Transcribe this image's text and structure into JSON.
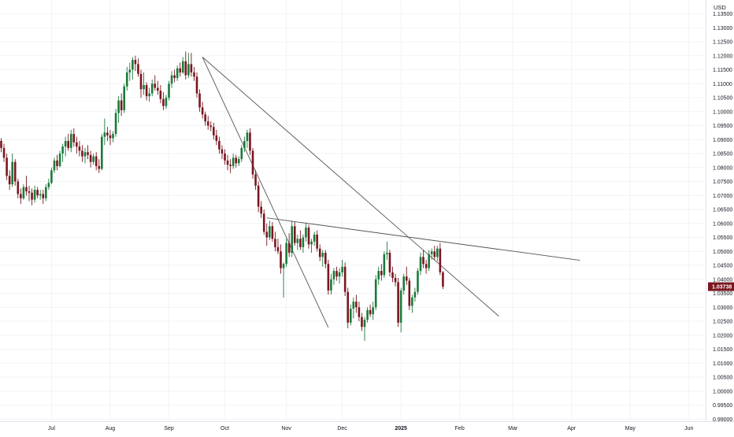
{
  "chart_data": {
    "type": "candlestick",
    "currency": "USD",
    "y_ticks": [
      "1.13500",
      "1.13000",
      "1.12500",
      "1.12000",
      "1.11500",
      "1.11000",
      "1.10500",
      "1.10000",
      "1.09500",
      "1.09000",
      "1.08500",
      "1.08000",
      "1.07500",
      "1.07000",
      "1.06500",
      "1.06000",
      "1.05500",
      "1.05000",
      "1.04500",
      "1.04000",
      "1.03500",
      "1.03000",
      "1.02500",
      "1.02000",
      "1.01500",
      "1.01000",
      "1.00500",
      "1.00000",
      "0.99500",
      "0.99000"
    ],
    "ylim": [
      0.989,
      1.1375
    ],
    "x_ticks": [
      {
        "label": "Jul",
        "bar": 18
      },
      {
        "label": "Aug",
        "bar": 39
      },
      {
        "label": "Sep",
        "bar": 60
      },
      {
        "label": "Oct",
        "bar": 80
      },
      {
        "label": "Nov",
        "bar": 102
      },
      {
        "label": "Dec",
        "bar": 122
      },
      {
        "label": "2025",
        "bar": 143
      },
      {
        "label": "Feb",
        "bar": 164
      },
      {
        "label": "Mar",
        "bar": 183
      },
      {
        "label": "Apr",
        "bar": 204
      },
      {
        "label": "May",
        "bar": 225
      },
      {
        "label": "Jun",
        "bar": 246
      }
    ],
    "bold_x_tick": "2025",
    "last_price": "1.03738",
    "colors": {
      "up": "#1b7a3a",
      "down": "#7a1620",
      "price_label_bg": "#7a1620",
      "trendline": "#555555",
      "grid": "#f0f3f7",
      "axis_text": "#131722"
    },
    "candles": [
      [
        1.0895,
        1.0905,
        1.0855,
        1.087
      ],
      [
        1.087,
        1.0885,
        1.082,
        1.0835
      ],
      [
        1.0835,
        1.085,
        1.0755,
        1.077
      ],
      [
        1.077,
        1.079,
        1.072,
        1.074
      ],
      [
        1.074,
        1.085,
        1.073,
        1.082
      ],
      [
        1.082,
        1.083,
        1.0735,
        1.075
      ],
      [
        1.075,
        1.076,
        1.069,
        1.0705
      ],
      [
        1.0705,
        1.0725,
        1.067,
        1.069
      ],
      [
        1.069,
        1.074,
        1.0685,
        1.073
      ],
      [
        1.073,
        1.077,
        1.07,
        1.0715
      ],
      [
        1.0715,
        1.0735,
        1.068,
        1.071
      ],
      [
        1.071,
        1.0725,
        1.0665,
        1.0685
      ],
      [
        1.0685,
        1.0735,
        1.0675,
        1.072
      ],
      [
        1.072,
        1.073,
        1.069,
        1.07
      ],
      [
        1.07,
        1.072,
        1.0685,
        1.0705
      ],
      [
        1.0705,
        1.072,
        1.067,
        1.069
      ],
      [
        1.069,
        1.074,
        1.068,
        1.073
      ],
      [
        1.073,
        1.076,
        1.072,
        1.0745
      ],
      [
        1.0745,
        1.08,
        1.074,
        1.079
      ],
      [
        1.079,
        1.0835,
        1.078,
        1.0825
      ],
      [
        1.0825,
        1.0845,
        1.079,
        1.0805
      ],
      [
        1.0805,
        1.086,
        1.08,
        1.085
      ],
      [
        1.085,
        1.0885,
        1.082,
        1.0875
      ],
      [
        1.0875,
        1.091,
        1.084,
        1.0895
      ],
      [
        1.0895,
        1.092,
        1.086,
        1.087
      ],
      [
        1.087,
        1.0935,
        1.0855,
        1.092
      ],
      [
        1.092,
        1.094,
        1.0875,
        1.089
      ],
      [
        1.089,
        1.091,
        1.085,
        1.0875
      ],
      [
        1.0875,
        1.0895,
        1.084,
        1.086
      ],
      [
        1.086,
        1.088,
        1.082,
        1.084
      ],
      [
        1.084,
        1.087,
        1.0815,
        1.0855
      ],
      [
        1.0855,
        1.088,
        1.083,
        1.0845
      ],
      [
        1.0845,
        1.086,
        1.08,
        1.082
      ],
      [
        1.082,
        1.085,
        1.081,
        1.084
      ],
      [
        1.084,
        1.0855,
        1.079,
        1.0805
      ],
      [
        1.0805,
        1.083,
        1.078,
        1.0795
      ],
      [
        1.0795,
        1.092,
        1.079,
        1.091
      ],
      [
        1.091,
        1.0975,
        1.088,
        1.0925
      ],
      [
        1.0925,
        1.0945,
        1.0895,
        1.0915
      ],
      [
        1.0915,
        1.0935,
        1.088,
        1.0905
      ],
      [
        1.0905,
        1.093,
        1.089,
        1.092
      ],
      [
        1.092,
        1.101,
        1.091,
        1.0995
      ],
      [
        1.0995,
        1.1055,
        1.096,
        1.104
      ],
      [
        1.104,
        1.1065,
        1.0985,
        1.1005
      ],
      [
        1.1005,
        1.11,
        1.0995,
        1.109
      ],
      [
        1.109,
        1.116,
        1.1075,
        1.114
      ],
      [
        1.114,
        1.1175,
        1.111,
        1.115
      ],
      [
        1.115,
        1.1195,
        1.1115,
        1.1185
      ],
      [
        1.1185,
        1.12,
        1.1145,
        1.117
      ],
      [
        1.117,
        1.119,
        1.1125,
        1.1135
      ],
      [
        1.1135,
        1.115,
        1.105,
        1.108
      ],
      [
        1.108,
        1.114,
        1.106,
        1.1095
      ],
      [
        1.1095,
        1.1105,
        1.104,
        1.1055
      ],
      [
        1.1055,
        1.1085,
        1.1035,
        1.1065
      ],
      [
        1.1065,
        1.1115,
        1.1055,
        1.11
      ],
      [
        1.11,
        1.113,
        1.1075,
        1.1085
      ],
      [
        1.1085,
        1.111,
        1.106,
        1.1075
      ],
      [
        1.1075,
        1.1095,
        1.103,
        1.1045
      ],
      [
        1.1045,
        1.107,
        1.1005,
        1.102
      ],
      [
        1.102,
        1.106,
        1.101,
        1.105
      ],
      [
        1.105,
        1.111,
        1.104,
        1.11
      ],
      [
        1.11,
        1.1145,
        1.1085,
        1.113
      ],
      [
        1.113,
        1.115,
        1.1105,
        1.112
      ],
      [
        1.112,
        1.1165,
        1.111,
        1.1155
      ],
      [
        1.1155,
        1.1175,
        1.1125,
        1.114
      ],
      [
        1.114,
        1.1195,
        1.1135,
        1.118
      ],
      [
        1.118,
        1.1215,
        1.1115,
        1.113
      ],
      [
        1.113,
        1.121,
        1.112,
        1.117
      ],
      [
        1.117,
        1.121,
        1.1125,
        1.114
      ],
      [
        1.114,
        1.116,
        1.111,
        1.1125
      ],
      [
        1.1125,
        1.114,
        1.105,
        1.1065
      ],
      [
        1.1065,
        1.108,
        1.1,
        1.1015
      ],
      [
        1.1015,
        1.1035,
        1.0975,
        1.099
      ],
      [
        1.099,
        1.1,
        1.095,
        1.0965
      ],
      [
        1.0965,
        1.0985,
        1.0935,
        1.095
      ],
      [
        1.095,
        1.0965,
        1.093,
        1.0945
      ],
      [
        1.0945,
        1.096,
        1.09,
        1.0915
      ],
      [
        1.0915,
        1.0935,
        1.088,
        1.0895
      ],
      [
        1.0895,
        1.091,
        1.085,
        1.0865
      ],
      [
        1.0865,
        1.088,
        1.083,
        1.085
      ],
      [
        1.085,
        1.0865,
        1.081,
        1.0825
      ],
      [
        1.0825,
        1.0845,
        1.079,
        1.081
      ],
      [
        1.081,
        1.083,
        1.078,
        1.0805
      ],
      [
        1.0805,
        1.085,
        1.0795,
        1.0835
      ],
      [
        1.0835,
        1.0845,
        1.08,
        1.0815
      ],
      [
        1.0815,
        1.084,
        1.0805,
        1.083
      ],
      [
        1.083,
        1.088,
        1.082,
        1.087
      ],
      [
        1.087,
        1.091,
        1.0855,
        1.0895
      ],
      [
        1.0895,
        1.0935,
        1.087,
        1.0925
      ],
      [
        1.0925,
        1.094,
        1.0845,
        1.086
      ],
      [
        1.086,
        1.087,
        1.076,
        1.0775
      ],
      [
        1.0775,
        1.079,
        1.072,
        1.0735
      ],
      [
        1.0735,
        1.075,
        1.064,
        1.066
      ],
      [
        1.066,
        1.068,
        1.062,
        1.0635
      ],
      [
        1.0635,
        1.065,
        1.056,
        1.057
      ],
      [
        1.057,
        1.06,
        1.052,
        1.055
      ],
      [
        1.055,
        1.061,
        1.054,
        1.059
      ],
      [
        1.059,
        1.0605,
        1.0535,
        1.0545
      ],
      [
        1.0545,
        1.057,
        1.05,
        1.0515
      ],
      [
        1.0515,
        1.0545,
        1.049,
        1.05
      ],
      [
        1.05,
        1.0525,
        1.042,
        1.044
      ],
      [
        1.044,
        1.046,
        1.0335,
        1.0455
      ],
      [
        1.0455,
        1.0545,
        1.0445,
        1.053
      ],
      [
        1.053,
        1.0565,
        1.048,
        1.0495
      ],
      [
        1.0495,
        1.061,
        1.048,
        1.059
      ],
      [
        1.059,
        1.0605,
        1.052,
        1.053
      ],
      [
        1.053,
        1.056,
        1.0505,
        1.0545
      ],
      [
        1.0545,
        1.0575,
        1.0505,
        1.0515
      ],
      [
        1.0515,
        1.056,
        1.0495,
        1.055
      ],
      [
        1.055,
        1.06,
        1.0535,
        1.0585
      ],
      [
        1.0585,
        1.0595,
        1.051,
        1.0525
      ],
      [
        1.0525,
        1.0545,
        1.0495,
        1.0535
      ],
      [
        1.0535,
        1.057,
        1.052,
        1.056
      ],
      [
        1.056,
        1.0575,
        1.05,
        1.051
      ],
      [
        1.051,
        1.0525,
        1.0465,
        1.048
      ],
      [
        1.048,
        1.0505,
        1.0445,
        1.0495
      ],
      [
        1.0495,
        1.0505,
        1.044,
        1.0455
      ],
      [
        1.0455,
        1.047,
        1.0345,
        1.036
      ],
      [
        1.036,
        1.042,
        1.0345,
        1.04
      ],
      [
        1.04,
        1.044,
        1.038,
        1.043
      ],
      [
        1.043,
        1.0445,
        1.0395,
        1.041
      ],
      [
        1.041,
        1.044,
        1.0385,
        1.0425
      ],
      [
        1.0425,
        1.047,
        1.041,
        1.0445
      ],
      [
        1.0445,
        1.046,
        1.034,
        1.0355
      ],
      [
        1.0355,
        1.037,
        1.0225,
        1.0245
      ],
      [
        1.0245,
        1.031,
        1.0235,
        1.0295
      ],
      [
        1.0295,
        1.0335,
        1.026,
        1.032
      ],
      [
        1.032,
        1.0345,
        1.028,
        1.03
      ],
      [
        1.03,
        1.032,
        1.025,
        1.0265
      ],
      [
        1.0265,
        1.028,
        1.0215,
        1.023
      ],
      [
        1.023,
        1.0265,
        1.018,
        1.0255
      ],
      [
        1.0255,
        1.03,
        1.0245,
        1.029
      ],
      [
        1.029,
        1.031,
        1.0265,
        1.0275
      ],
      [
        1.0275,
        1.032,
        1.0255,
        1.03
      ],
      [
        1.03,
        1.0415,
        1.029,
        1.04
      ],
      [
        1.04,
        1.0445,
        1.038,
        1.043
      ],
      [
        1.043,
        1.0455,
        1.0395,
        1.0415
      ],
      [
        1.0415,
        1.05,
        1.0405,
        1.049
      ],
      [
        1.049,
        1.0535,
        1.047,
        1.0495
      ],
      [
        1.0495,
        1.0505,
        1.041,
        1.0425
      ],
      [
        1.0425,
        1.0445,
        1.039,
        1.0405
      ],
      [
        1.0405,
        1.042,
        1.0375,
        1.039
      ],
      [
        1.039,
        1.0405,
        1.023,
        1.0245
      ],
      [
        1.0245,
        1.037,
        1.021,
        1.036
      ],
      [
        1.036,
        1.042,
        1.0345,
        1.041
      ],
      [
        1.041,
        1.0445,
        1.038,
        1.0395
      ],
      [
        1.0395,
        1.0405,
        1.029,
        1.0305
      ],
      [
        1.0305,
        1.0345,
        1.028,
        1.0335
      ],
      [
        1.0335,
        1.037,
        1.032,
        1.0355
      ],
      [
        1.0355,
        1.044,
        1.0345,
        1.043
      ],
      [
        1.043,
        1.0495,
        1.0415,
        1.048
      ],
      [
        1.048,
        1.0505,
        1.044,
        1.0455
      ],
      [
        1.0455,
        1.047,
        1.042,
        1.044
      ],
      [
        1.044,
        1.0505,
        1.043,
        1.049
      ],
      [
        1.049,
        1.051,
        1.047,
        1.05
      ],
      [
        1.05,
        1.052,
        1.047,
        1.048
      ],
      [
        1.048,
        1.052,
        1.0465,
        1.051
      ],
      [
        1.051,
        1.053,
        1.0415,
        1.0425
      ],
      [
        1.0425,
        1.043,
        1.0365,
        1.0374
      ]
    ],
    "trendlines": [
      {
        "from": {
          "bar": 72,
          "y": 1.1195
        },
        "to": {
          "bar": 117,
          "y": 1.0228
        }
      },
      {
        "from": {
          "bar": 72,
          "y": 1.1195
        },
        "to": {
          "bar": 178,
          "y": 1.0268
        }
      },
      {
        "from": {
          "bar": 95,
          "y": 1.062
        },
        "to": {
          "bar": 207,
          "y": 1.0468
        }
      }
    ]
  }
}
